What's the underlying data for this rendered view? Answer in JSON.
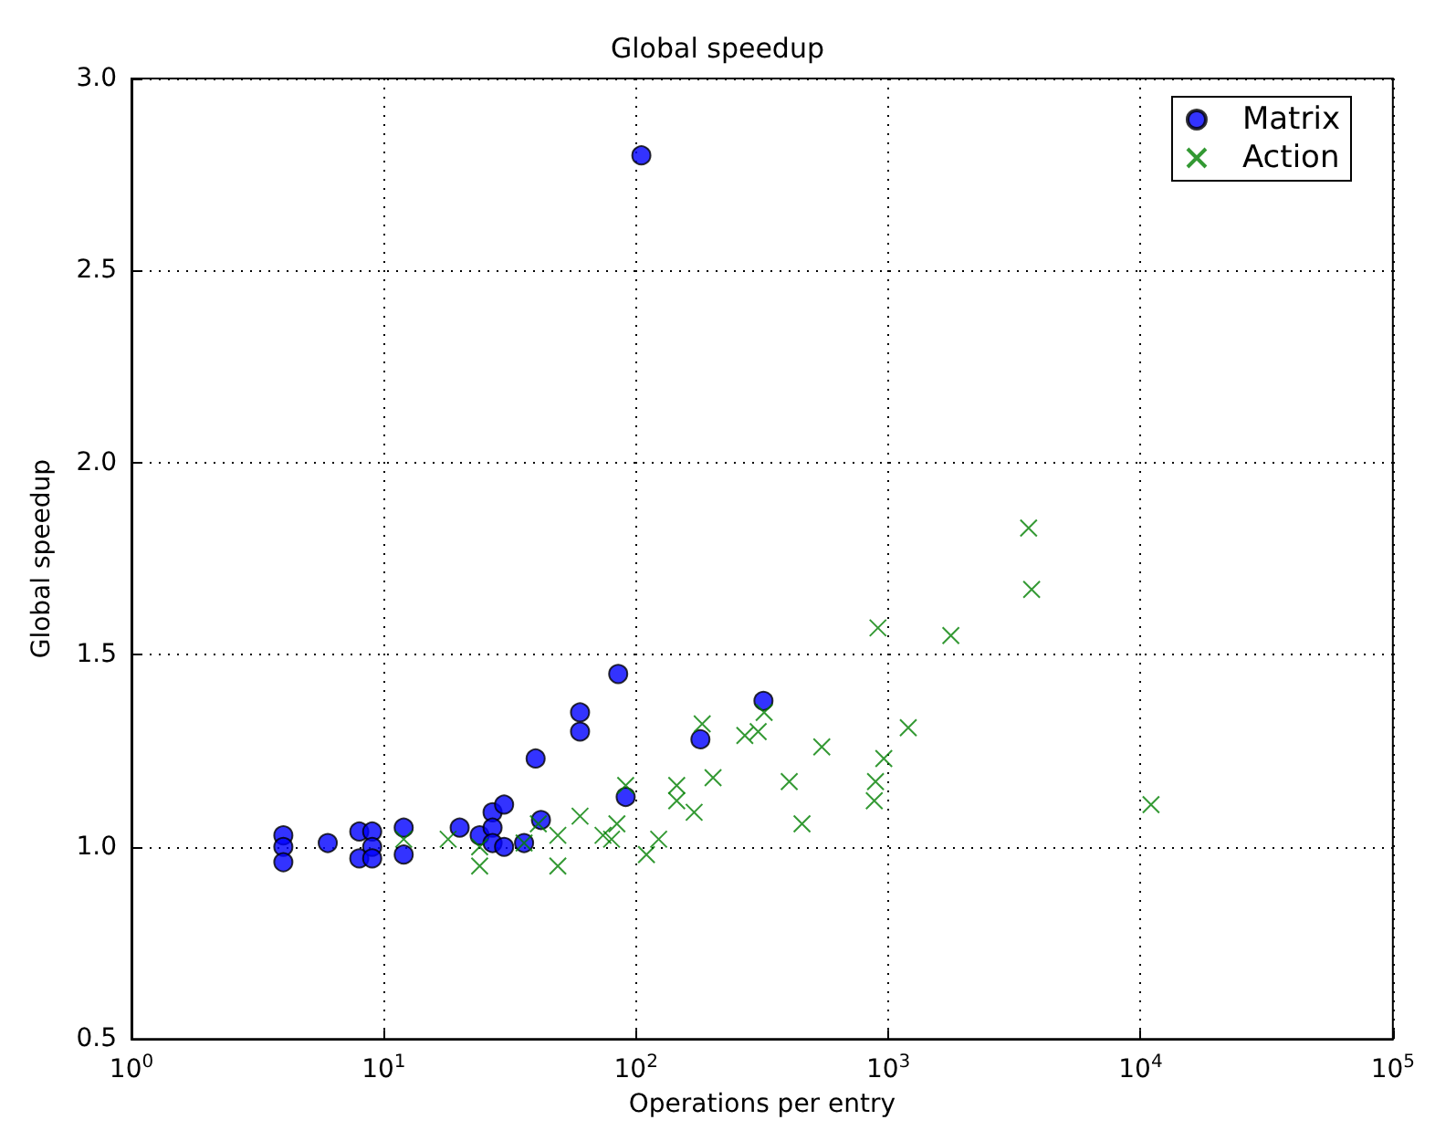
{
  "chart_data": {
    "type": "scatter",
    "title": "Global speedup",
    "xlabel": "Operations per entry",
    "ylabel": "Global speedup",
    "log": "x",
    "grid": true,
    "legend": "top right",
    "xlim": [
      1,
      100000
    ],
    "xticks": [
      {
        "value": 1,
        "label": "10$^{0}$"
      },
      {
        "value": 10,
        "label": "10$^{1}$"
      },
      {
        "value": 100,
        "label": "10$^{2}$"
      },
      {
        "value": 1000,
        "label": "10$^{3}$"
      },
      {
        "value": 10000,
        "label": "10$^{4}$"
      },
      {
        "value": 100000,
        "label": "10$^{5}$"
      }
    ],
    "ylim": [
      0.5,
      3.0
    ],
    "yticks": [
      {
        "value": 0.5,
        "label": "0.5"
      },
      {
        "value": 1,
        "label": "1.0"
      },
      {
        "value": 1.5,
        "label": "1.5"
      },
      {
        "value": 2,
        "label": "2.0"
      },
      {
        "value": 2.5,
        "label": "2.5"
      },
      {
        "value": 3,
        "label": "3.0"
      }
    ],
    "series": [
      {
        "name": "Matrix",
        "color": "#0000ff",
        "marker": "circle",
        "x": [
          4,
          4,
          4,
          6,
          8,
          8,
          9,
          9,
          9,
          12,
          12,
          20,
          24,
          27,
          27,
          27,
          30,
          30,
          36,
          40,
          42,
          60,
          60,
          85,
          91,
          105,
          180,
          320
        ],
        "values": [
          1.03,
          1.0,
          0.96,
          1.01,
          1.04,
          0.97,
          1.04,
          1.0,
          0.97,
          1.05,
          0.98,
          1.05,
          1.03,
          1.09,
          1.05,
          1.01,
          1.11,
          1.0,
          1.01,
          1.23,
          1.07,
          1.35,
          1.3,
          1.45,
          1.13,
          2.8,
          1.28,
          1.38
        ]
      },
      {
        "name": "Action",
        "color": "#008000",
        "marker": "cross",
        "x": [
          12,
          18,
          24,
          24,
          36,
          41,
          49,
          49,
          60,
          74,
          80,
          84,
          91,
          110,
          123,
          145,
          145,
          170,
          183,
          202,
          270,
          305,
          322,
          405,
          455,
          545,
          880,
          890,
          910,
          960,
          1200,
          1770,
          3600,
          3700,
          11000
        ],
        "values": [
          1.02,
          1.02,
          0.95,
          1.0,
          1.01,
          1.06,
          1.03,
          0.95,
          1.08,
          1.03,
          1.02,
          1.06,
          1.16,
          0.98,
          1.02,
          1.16,
          1.12,
          1.09,
          1.32,
          1.18,
          1.29,
          1.3,
          1.35,
          1.17,
          1.06,
          1.26,
          1.12,
          1.17,
          1.57,
          1.23,
          1.31,
          1.55,
          1.83,
          1.67,
          1.11
        ]
      }
    ]
  }
}
